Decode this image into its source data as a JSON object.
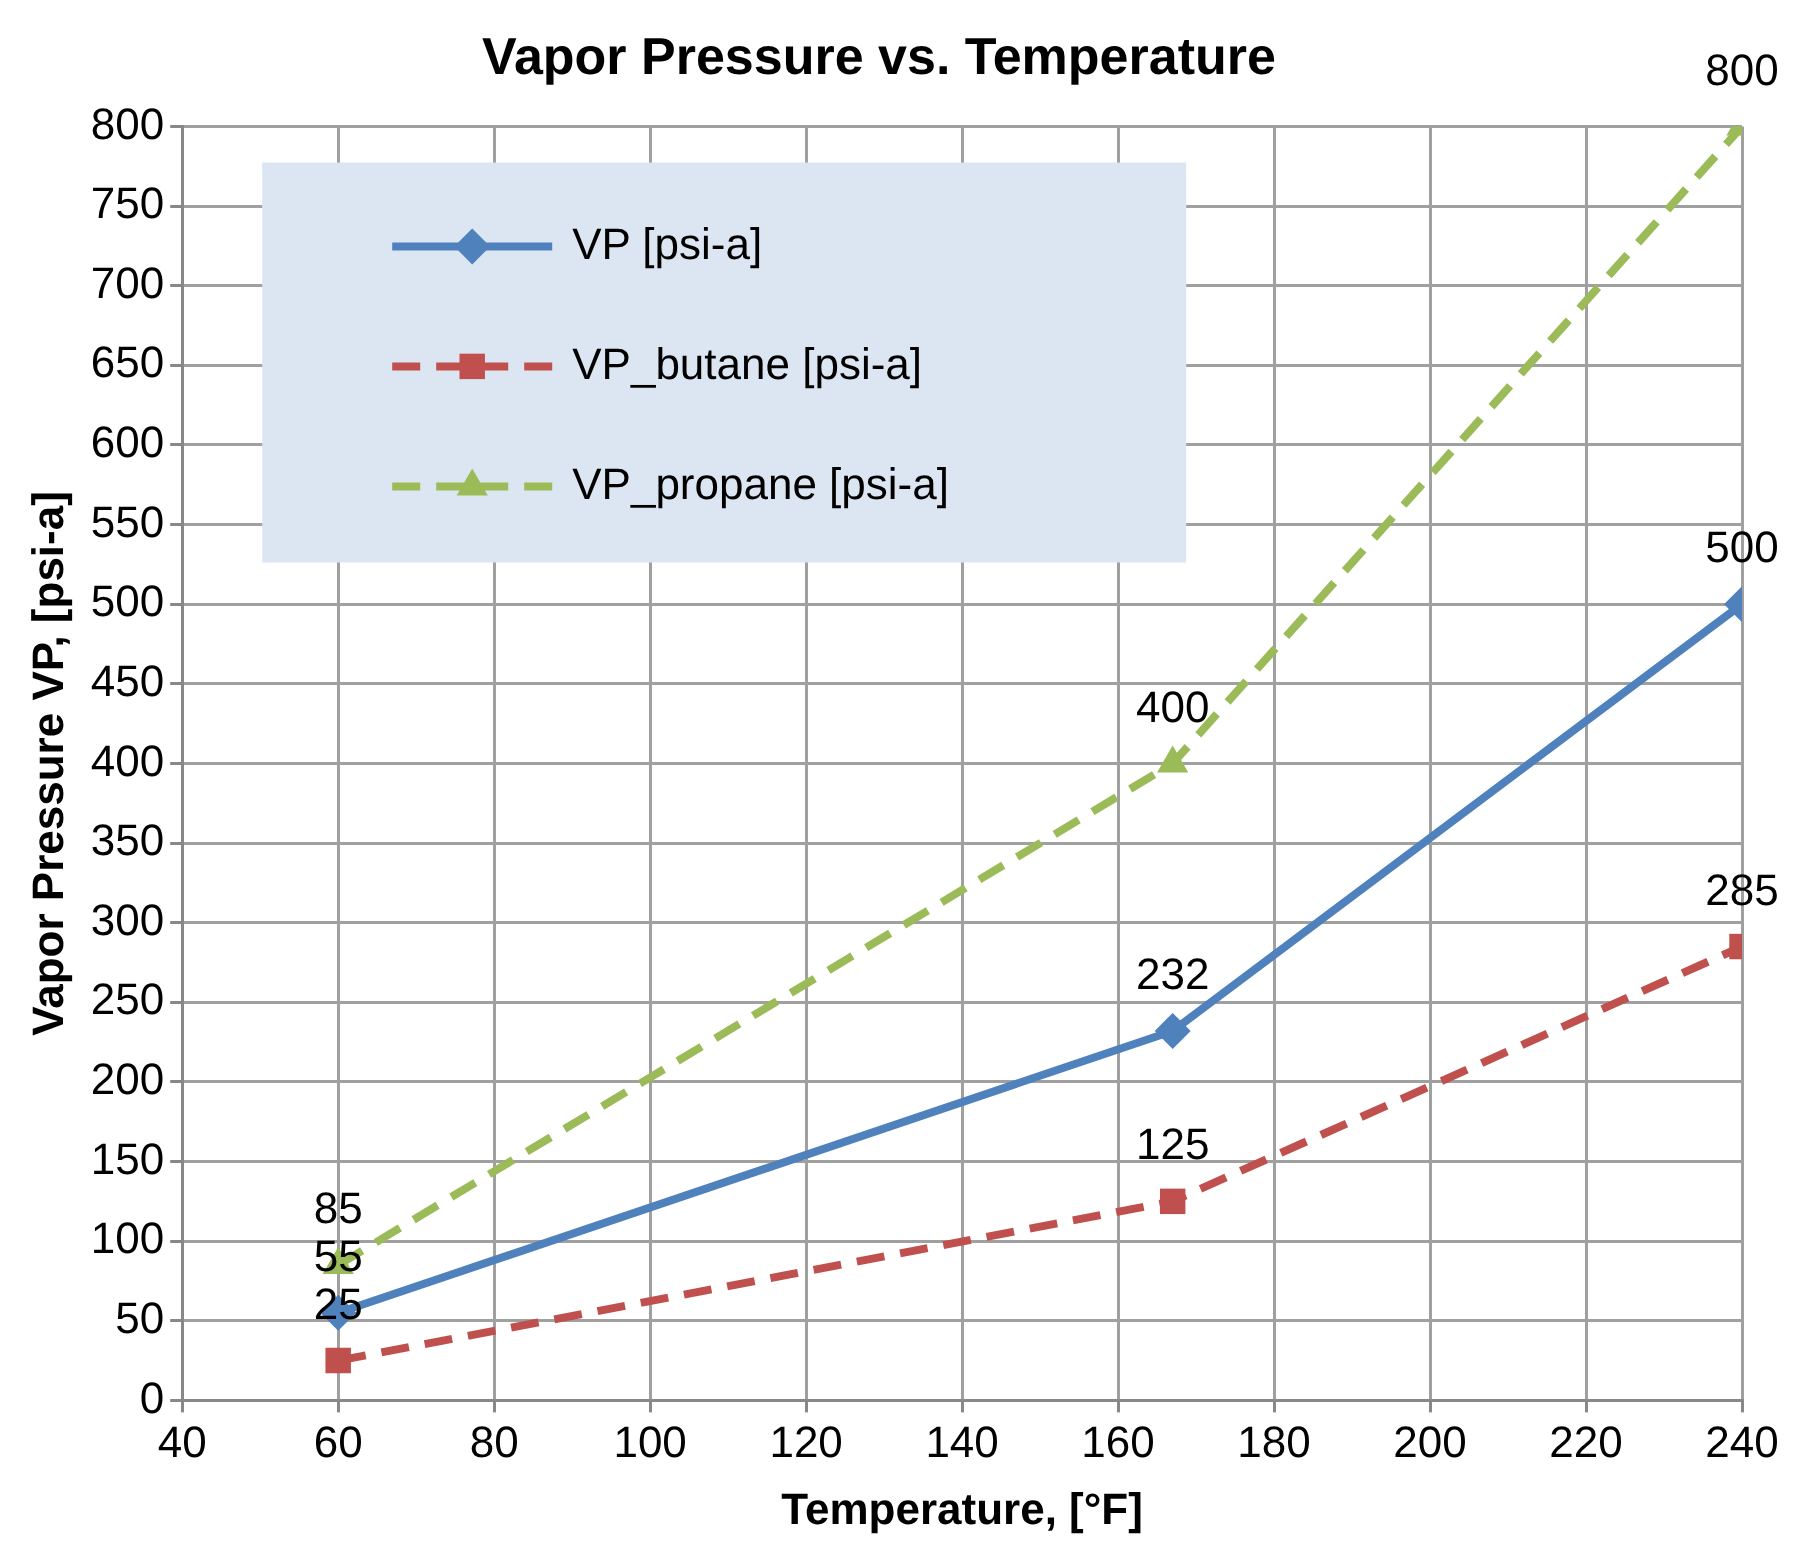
{
  "chart_data": {
    "type": "line",
    "title": "Vapor Pressure vs. Temperature",
    "xlabel": "Temperature, [°F]",
    "ylabel": "Vapor Pressure VP, [psi-a]",
    "x": [
      60,
      167,
      240
    ],
    "series": [
      {
        "name": "VP [psi-a]",
        "color": "#4f81bd",
        "values": [
          55,
          232,
          500
        ],
        "marker": "diamond",
        "line_style": "solid"
      },
      {
        "name": "VP_butane [psi-a]",
        "color": "#c0504d",
        "values": [
          25,
          125,
          285
        ],
        "marker": "square",
        "line_style": "dashed"
      },
      {
        "name": "VP_propane [psi-a]",
        "color": "#9bbb59",
        "values": [
          85,
          400,
          800
        ],
        "marker": "triangle",
        "line_style": "dashed"
      }
    ],
    "xlim": [
      40,
      240
    ],
    "xticks": [
      40,
      60,
      80,
      100,
      120,
      140,
      160,
      180,
      200,
      220,
      240
    ],
    "ylim": [
      0,
      800
    ],
    "yticks": [
      0,
      50,
      100,
      150,
      200,
      250,
      300,
      350,
      400,
      450,
      500,
      550,
      600,
      650,
      700,
      750,
      800
    ],
    "grid": true,
    "legend": "top left",
    "data_labels": true
  }
}
